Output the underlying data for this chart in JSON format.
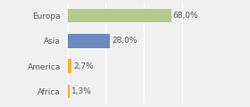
{
  "categories": [
    "Europa",
    "Asia",
    "America",
    "Africa"
  ],
  "values": [
    68.0,
    28.0,
    2.7,
    1.3
  ],
  "labels": [
    "68,0%",
    "28,0%",
    "2,7%",
    "1,3%"
  ],
  "bar_colors": [
    "#b5c98e",
    "#6b8abf",
    "#f0b429",
    "#f0b429"
  ],
  "background_color": "#f0f0f0",
  "xlim": [
    0,
    100
  ],
  "bar_height": 0.55,
  "label_fontsize": 6.5,
  "ytick_fontsize": 6.5
}
